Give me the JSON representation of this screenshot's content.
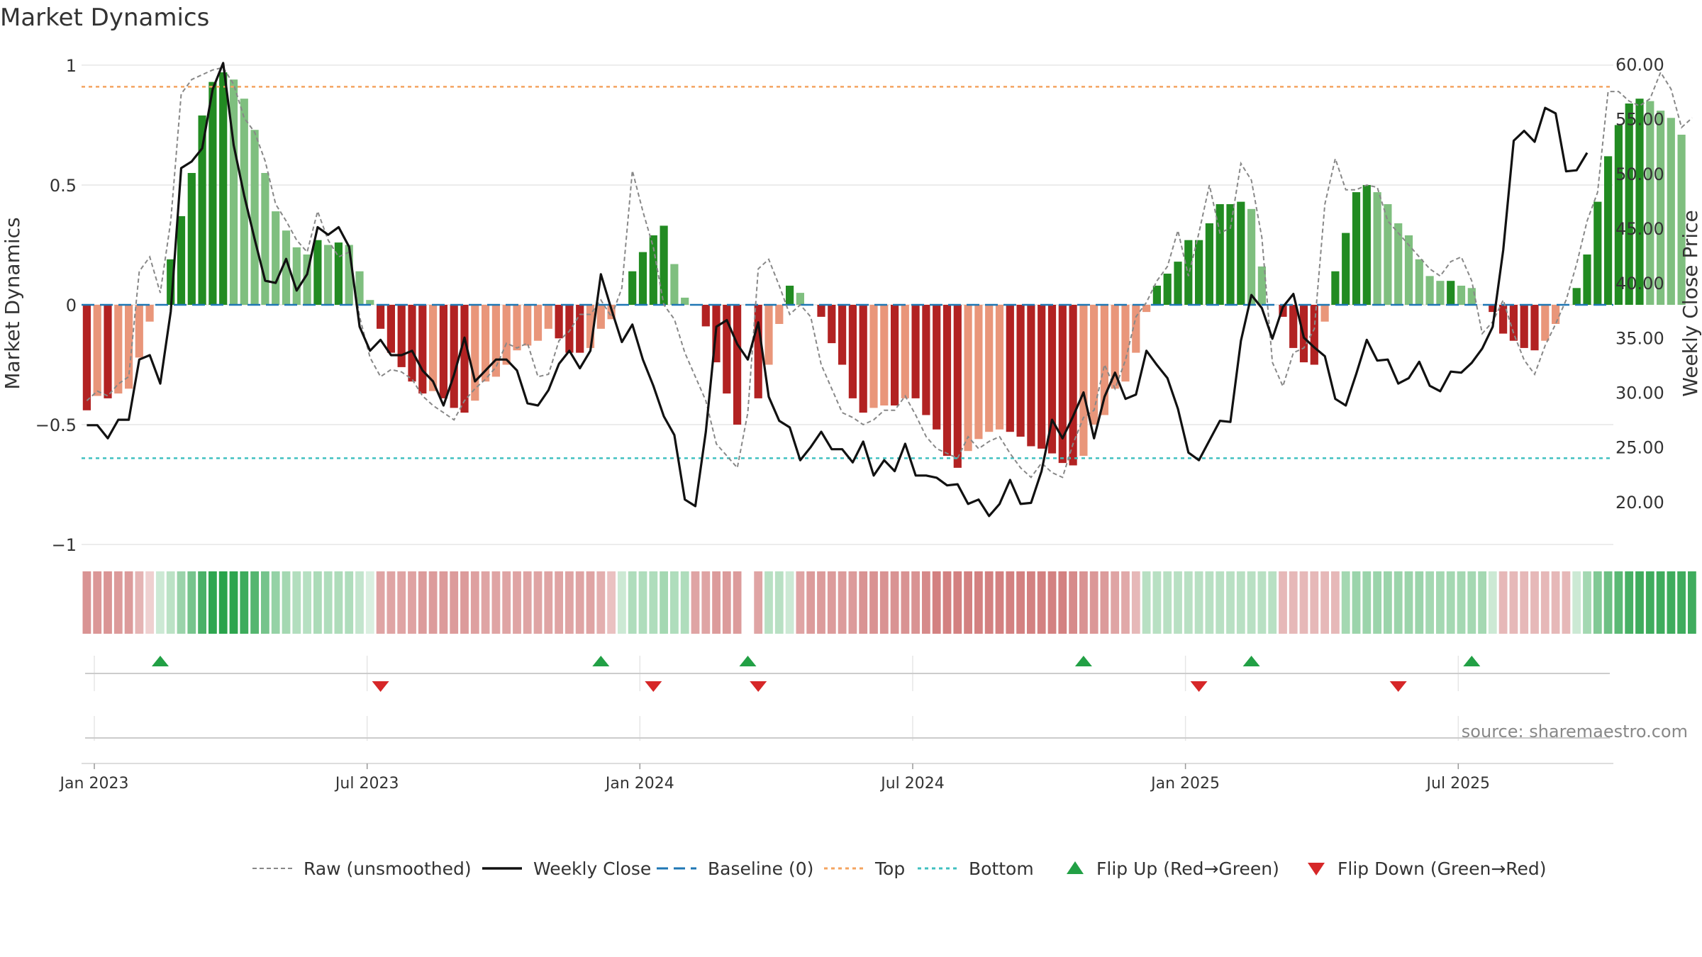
{
  "chart_data": {
    "type": "bar",
    "title": "Market Dynamics",
    "source": "source: sharemaestro.com",
    "left_axis": {
      "label": "Market Dynamics",
      "range": [
        -1.05,
        1.05
      ],
      "ticks": [
        1,
        0.5,
        0,
        -0.5,
        -1
      ],
      "tick_labels": [
        "1",
        "0.5",
        "0",
        "−0.5",
        "−1"
      ]
    },
    "right_axis": {
      "label": "Weekly Close Price",
      "range": [
        15.0,
        61.0
      ],
      "ticks": [
        60,
        55,
        50,
        45,
        40,
        35,
        30,
        25,
        20
      ],
      "tick_labels": [
        "60.00",
        "55.00",
        "50.00",
        "45.00",
        "40.00",
        "35.00",
        "30.00",
        "25.00",
        "20.00"
      ]
    },
    "x_axis": {
      "start": "2023-01-02",
      "weeks": 146,
      "ticks": [
        {
          "week": 0,
          "label": "Jan 2023"
        },
        {
          "week": 26,
          "label": "Jul 2023"
        },
        {
          "week": 52,
          "label": "Jan 2024"
        },
        {
          "week": 78,
          "label": "Jul 2024"
        },
        {
          "week": 104,
          "label": "Jan 2025"
        },
        {
          "week": 130,
          "label": "Jul 2025"
        }
      ]
    },
    "reference_lines": {
      "baseline": 0,
      "top": 0.91,
      "bottom": -0.64
    },
    "series": [
      {
        "name": "Market Dynamics (weekly bars)",
        "axis": "left",
        "values": [
          -0.44,
          -0.38,
          -0.39,
          -0.37,
          -0.35,
          -0.22,
          -0.07,
          0.0,
          0.19,
          0.37,
          0.55,
          0.79,
          0.93,
          0.97,
          0.94,
          0.86,
          0.73,
          0.55,
          0.39,
          0.31,
          0.24,
          0.21,
          0.27,
          0.25,
          0.26,
          0.25,
          0.14,
          0.02,
          -0.1,
          -0.2,
          -0.26,
          -0.32,
          -0.37,
          -0.36,
          -0.39,
          -0.43,
          -0.45,
          -0.4,
          -0.32,
          -0.3,
          -0.25,
          -0.19,
          -0.17,
          -0.15,
          -0.1,
          -0.14,
          -0.2,
          -0.2,
          -0.18,
          -0.1,
          -0.06,
          0.0,
          0.14,
          0.22,
          0.29,
          0.33,
          0.17,
          0.03,
          0.0,
          -0.09,
          -0.24,
          -0.37,
          -0.5,
          null,
          -0.39,
          -0.25,
          -0.08,
          0.08,
          0.05,
          0.0,
          -0.05,
          -0.16,
          -0.25,
          -0.39,
          -0.45,
          -0.43,
          -0.42,
          -0.42,
          -0.39,
          -0.39,
          -0.46,
          -0.52,
          -0.63,
          -0.68,
          -0.61,
          -0.56,
          -0.53,
          -0.52,
          -0.53,
          -0.55,
          -0.59,
          -0.6,
          -0.62,
          -0.66,
          -0.67,
          -0.63,
          -0.5,
          -0.46,
          -0.35,
          -0.32,
          -0.2,
          -0.03,
          0.08,
          0.13,
          0.18,
          0.27,
          0.27,
          0.34,
          0.42,
          0.42,
          0.43,
          0.4,
          0.16,
          0.0,
          -0.05,
          -0.18,
          -0.24,
          -0.25,
          -0.07,
          0.14,
          0.3,
          0.47,
          0.5,
          0.47,
          0.42,
          0.34,
          0.29,
          0.19,
          0.12,
          0.1,
          0.1,
          0.08,
          0.07,
          0.0,
          -0.03,
          -0.12,
          -0.15,
          -0.18,
          -0.19,
          -0.15,
          -0.08,
          0.0,
          0.07,
          0.21,
          0.43,
          0.62,
          0.75,
          0.84,
          0.86,
          0.85,
          0.81,
          0.78,
          0.71
        ]
      },
      {
        "name": "Raw (unsmoothed)",
        "axis": "left",
        "values": [
          -0.4,
          -0.36,
          -0.38,
          -0.33,
          -0.3,
          0.14,
          0.2,
          0.05,
          0.35,
          0.88,
          0.94,
          0.96,
          0.98,
          0.99,
          0.92,
          0.78,
          0.72,
          0.6,
          0.42,
          0.35,
          0.27,
          0.22,
          0.39,
          0.27,
          0.2,
          0.22,
          -0.05,
          -0.22,
          -0.3,
          -0.27,
          -0.28,
          -0.31,
          -0.38,
          -0.42,
          -0.45,
          -0.48,
          -0.4,
          -0.35,
          -0.31,
          -0.26,
          -0.16,
          -0.18,
          -0.16,
          -0.3,
          -0.29,
          -0.15,
          -0.11,
          -0.04,
          -0.04,
          0.02,
          -0.05,
          0.07,
          0.56,
          0.39,
          0.24,
          0.0,
          -0.06,
          -0.2,
          -0.3,
          -0.4,
          -0.58,
          -0.63,
          -0.68,
          -0.45,
          0.15,
          0.19,
          0.08,
          -0.04,
          0.0,
          -0.05,
          -0.25,
          -0.35,
          -0.45,
          -0.47,
          -0.5,
          -0.48,
          -0.44,
          -0.44,
          -0.38,
          -0.46,
          -0.55,
          -0.6,
          -0.62,
          -0.64,
          -0.55,
          -0.6,
          -0.57,
          -0.55,
          -0.62,
          -0.68,
          -0.72,
          -0.66,
          -0.7,
          -0.72,
          -0.58,
          -0.47,
          -0.44,
          -0.25,
          -0.35,
          -0.23,
          -0.05,
          0.01,
          0.1,
          0.16,
          0.31,
          0.12,
          0.3,
          0.5,
          0.3,
          0.32,
          0.59,
          0.52,
          0.28,
          -0.24,
          -0.34,
          -0.2,
          -0.18,
          -0.1,
          0.42,
          0.61,
          0.48,
          0.48,
          0.5,
          0.49,
          0.35,
          0.3,
          0.25,
          0.2,
          0.15,
          0.12,
          0.18,
          0.2,
          0.1,
          -0.12,
          -0.07,
          0.02,
          -0.12,
          -0.23,
          -0.29,
          -0.17,
          -0.08,
          0.02,
          0.17,
          0.35,
          0.47,
          0.89,
          0.89,
          0.85,
          0.83,
          0.86,
          0.97,
          0.9,
          0.74,
          0.78
        ]
      },
      {
        "name": "Weekly Close",
        "axis": "right",
        "values": [
          27.0,
          27.0,
          25.8,
          27.5,
          27.5,
          33.0,
          33.4,
          30.8,
          37.4,
          50.5,
          51.1,
          52.3,
          57.7,
          60.1,
          52.6,
          48.0,
          44.0,
          40.2,
          40.0,
          42.2,
          39.3,
          40.8,
          45.1,
          44.4,
          45.1,
          43.3,
          36.0,
          33.8,
          34.8,
          33.4,
          33.4,
          33.8,
          32.0,
          31.0,
          28.8,
          31.6,
          35.0,
          31.0,
          32.0,
          33.0,
          33.0,
          32.0,
          29.0,
          28.8,
          30.2,
          32.6,
          33.8,
          32.2,
          33.8,
          40.8,
          37.6,
          34.6,
          36.2,
          33.0,
          30.6,
          27.8,
          26.1,
          20.2,
          19.6,
          26.4,
          36.0,
          36.6,
          34.4,
          33.0,
          36.4,
          29.6,
          27.4,
          26.8,
          23.8,
          25.0,
          26.4,
          24.8,
          24.8,
          23.6,
          25.5,
          22.4,
          23.8,
          22.8,
          25.3,
          22.4,
          22.4,
          22.2,
          21.5,
          21.6,
          19.8,
          20.2,
          18.7,
          19.8,
          22.0,
          19.8,
          19.9,
          22.8,
          27.5,
          25.8,
          27.8,
          30.0,
          25.8,
          29.6,
          31.8,
          29.4,
          29.8,
          33.8,
          32.5,
          31.3,
          28.5,
          24.5,
          23.8,
          25.6,
          27.4,
          27.3,
          34.7,
          38.9,
          37.7,
          34.9,
          37.8,
          39.0,
          35.0,
          34.1,
          33.3,
          29.4,
          28.8,
          31.7,
          34.8,
          32.9,
          33.0,
          30.8,
          31.3,
          32.8,
          30.6,
          30.1,
          31.9,
          31.8,
          32.7,
          34.0,
          36.0,
          43.0,
          53.0,
          53.9,
          52.9,
          56.0,
          55.5,
          50.2,
          50.3,
          51.9
        ]
      }
    ],
    "regime_strip": [
      -0.4,
      -0.38,
      -0.39,
      -0.37,
      -0.35,
      -0.22,
      -0.07,
      0.1,
      0.19,
      0.37,
      0.55,
      0.79,
      0.93,
      0.97,
      0.94,
      0.86,
      0.73,
      0.55,
      0.39,
      0.31,
      0.24,
      0.21,
      0.27,
      0.25,
      0.26,
      0.25,
      0.14,
      0.02,
      -0.3,
      -0.3,
      -0.3,
      -0.32,
      -0.35,
      -0.35,
      -0.35,
      -0.35,
      -0.35,
      -0.33,
      -0.3,
      -0.3,
      -0.3,
      -0.3,
      -0.3,
      -0.3,
      -0.3,
      -0.3,
      -0.3,
      -0.3,
      -0.3,
      -0.25,
      -0.15,
      0.1,
      0.25,
      0.25,
      0.25,
      0.3,
      0.25,
      0.25,
      -0.3,
      -0.3,
      -0.35,
      -0.35,
      -0.35,
      null,
      -0.3,
      0.2,
      0.2,
      0.1,
      -0.3,
      -0.35,
      -0.35,
      -0.35,
      -0.35,
      -0.35,
      -0.4,
      -0.4,
      -0.4,
      -0.4,
      -0.4,
      -0.4,
      -0.45,
      -0.5,
      -0.5,
      -0.5,
      -0.5,
      -0.5,
      -0.5,
      -0.5,
      -0.5,
      -0.5,
      -0.5,
      -0.5,
      -0.5,
      -0.5,
      -0.45,
      -0.4,
      -0.38,
      -0.35,
      -0.3,
      -0.28,
      -0.2,
      0.2,
      0.2,
      0.2,
      0.2,
      0.2,
      0.2,
      0.2,
      0.2,
      0.2,
      0.2,
      0.2,
      0.2,
      0.2,
      -0.2,
      -0.2,
      -0.2,
      -0.2,
      -0.2,
      -0.2,
      0.3,
      0.35,
      0.35,
      0.35,
      0.35,
      0.35,
      0.35,
      0.35,
      0.3,
      0.3,
      0.3,
      0.3,
      0.3,
      0.3,
      0.1,
      -0.2,
      -0.2,
      -0.2,
      -0.2,
      -0.2,
      -0.2,
      -0.2,
      0.1,
      0.3,
      0.5,
      0.6,
      0.7,
      0.8,
      0.85,
      0.85,
      0.85,
      0.85,
      0.85,
      0.85
    ],
    "flips_up": [
      7,
      49,
      63,
      95,
      111,
      132
    ],
    "flips_down": [
      28,
      54,
      64,
      106,
      125
    ],
    "legend": [
      {
        "key": "raw",
        "label": "Raw (unsmoothed)"
      },
      {
        "key": "close",
        "label": "Weekly Close"
      },
      {
        "key": "baseline",
        "label": "Baseline (0)"
      },
      {
        "key": "top",
        "label": "Top"
      },
      {
        "key": "bottom",
        "label": "Bottom"
      },
      {
        "key": "flip_up",
        "label": "Flip Up (Red→Green)"
      },
      {
        "key": "flip_down",
        "label": "Flip Down (Green→Red)"
      }
    ],
    "colors": {
      "strong_green": "#228b22",
      "light_green": "#7fbf7f",
      "strong_red": "#b22222",
      "light_red": "#e9967a",
      "raw": "#888888",
      "close": "#111111",
      "baseline": "#1f77b4",
      "top": "#f4a460",
      "bottom": "#40c0c0",
      "flip_up": "#22a045",
      "flip_down": "#d62728"
    }
  }
}
